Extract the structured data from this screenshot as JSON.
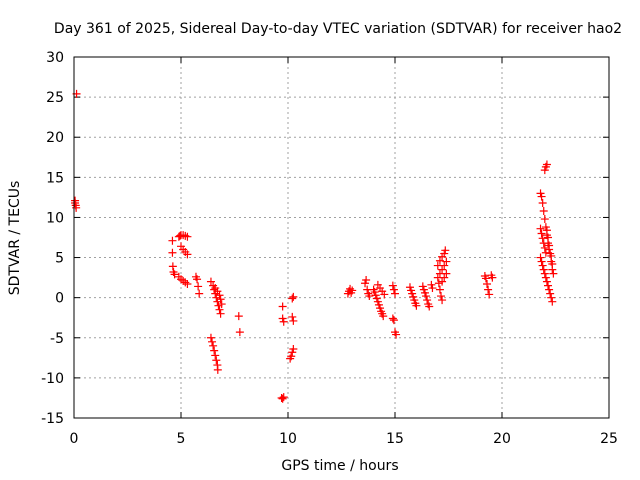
{
  "chart_data": {
    "type": "scatter",
    "title": "Day 361 of 2025, Sidereal Day-to-day VTEC variation (SDTVAR) for receiver hao2",
    "xlabel": "GPS time / hours",
    "ylabel": "SDTVAR / TECUs",
    "xlim": [
      0,
      25
    ],
    "ylim": [
      -15,
      30
    ],
    "xticks": [
      "0",
      "5",
      "10",
      "15",
      "20",
      "25"
    ],
    "yticks": [
      "-15",
      "-10",
      "-5",
      "0",
      "5",
      "10",
      "15",
      "20",
      "25",
      "30"
    ],
    "grid": true,
    "marker": "+",
    "color": "#ff0000",
    "series": [
      {
        "name": "SDTVAR",
        "points": [
          [
            0.05,
            12.1
          ],
          [
            0.05,
            11.8
          ],
          [
            0.08,
            11.5
          ],
          [
            0.1,
            11.2
          ],
          [
            0.12,
            25.4
          ],
          [
            4.6,
            7.1
          ],
          [
            4.6,
            5.6
          ],
          [
            4.62,
            3.9
          ],
          [
            4.65,
            3.2
          ],
          [
            4.7,
            2.9
          ],
          [
            4.9,
            7.6
          ],
          [
            4.95,
            7.7
          ],
          [
            5.0,
            7.8
          ],
          [
            5.1,
            7.8
          ],
          [
            5.2,
            7.7
          ],
          [
            5.3,
            7.6
          ],
          [
            5.0,
            6.4
          ],
          [
            5.1,
            6.0
          ],
          [
            5.2,
            5.7
          ],
          [
            5.3,
            5.4
          ],
          [
            4.9,
            2.6
          ],
          [
            5.0,
            2.3
          ],
          [
            5.1,
            2.1
          ],
          [
            5.2,
            1.9
          ],
          [
            5.3,
            1.7
          ],
          [
            5.7,
            2.6
          ],
          [
            5.75,
            2.3
          ],
          [
            5.8,
            1.4
          ],
          [
            5.85,
            0.5
          ],
          [
            6.4,
            2.0
          ],
          [
            6.5,
            1.5
          ],
          [
            6.55,
            1.0
          ],
          [
            6.6,
            0.5
          ],
          [
            6.65,
            0.0
          ],
          [
            6.7,
            -0.5
          ],
          [
            6.75,
            -1.0
          ],
          [
            6.8,
            -1.5
          ],
          [
            6.85,
            -2.0
          ],
          [
            6.6,
            1.2
          ],
          [
            6.7,
            0.8
          ],
          [
            6.8,
            0.3
          ],
          [
            6.85,
            -0.2
          ],
          [
            6.9,
            -0.8
          ],
          [
            6.4,
            -5.0
          ],
          [
            6.45,
            -5.5
          ],
          [
            6.5,
            -6.0
          ],
          [
            6.55,
            -6.6
          ],
          [
            6.6,
            -7.2
          ],
          [
            6.65,
            -7.8
          ],
          [
            6.7,
            -8.4
          ],
          [
            6.72,
            -9.0
          ],
          [
            7.7,
            -2.3
          ],
          [
            7.75,
            -4.3
          ],
          [
            9.7,
            -12.5
          ],
          [
            9.75,
            -12.6
          ],
          [
            9.8,
            -12.4
          ],
          [
            9.75,
            -1.1
          ],
          [
            9.75,
            -2.6
          ],
          [
            9.8,
            -3.0
          ],
          [
            10.2,
            -0.1
          ],
          [
            10.25,
            0.1
          ],
          [
            10.2,
            -2.4
          ],
          [
            10.25,
            -2.9
          ],
          [
            10.1,
            -7.6
          ],
          [
            10.15,
            -7.3
          ],
          [
            10.2,
            -6.8
          ],
          [
            10.25,
            -6.4
          ],
          [
            12.8,
            0.5
          ],
          [
            12.85,
            0.8
          ],
          [
            12.9,
            1.1
          ],
          [
            12.95,
            0.6
          ],
          [
            13.0,
            0.9
          ],
          [
            13.6,
            1.8
          ],
          [
            13.65,
            2.2
          ],
          [
            13.7,
            1.0
          ],
          [
            13.75,
            0.5
          ],
          [
            13.8,
            0.2
          ],
          [
            14.0,
            1.0
          ],
          [
            14.05,
            0.7
          ],
          [
            14.1,
            0.3
          ],
          [
            14.15,
            -0.1
          ],
          [
            14.2,
            -0.5
          ],
          [
            14.25,
            -0.9
          ],
          [
            14.3,
            -1.3
          ],
          [
            14.35,
            -1.7
          ],
          [
            14.4,
            -2.0
          ],
          [
            14.45,
            -2.3
          ],
          [
            14.2,
            1.6
          ],
          [
            14.3,
            1.2
          ],
          [
            14.4,
            0.8
          ],
          [
            14.5,
            0.4
          ],
          [
            14.9,
            -2.6
          ],
          [
            14.95,
            -2.8
          ],
          [
            15.0,
            -4.3
          ],
          [
            15.05,
            -4.6
          ],
          [
            14.9,
            1.5
          ],
          [
            14.95,
            1.0
          ],
          [
            15.0,
            0.5
          ],
          [
            15.7,
            1.3
          ],
          [
            15.75,
            0.9
          ],
          [
            15.8,
            0.5
          ],
          [
            15.85,
            0.1
          ],
          [
            15.9,
            -0.3
          ],
          [
            15.95,
            -0.7
          ],
          [
            16.0,
            -1.0
          ],
          [
            16.3,
            1.4
          ],
          [
            16.35,
            1.0
          ],
          [
            16.4,
            0.6
          ],
          [
            16.45,
            0.2
          ],
          [
            16.5,
            -0.3
          ],
          [
            16.55,
            -0.8
          ],
          [
            16.6,
            -1.1
          ],
          [
            16.7,
            1.6
          ],
          [
            16.75,
            1.2
          ],
          [
            17.0,
            2.5
          ],
          [
            17.05,
            1.8
          ],
          [
            17.1,
            1.0
          ],
          [
            17.15,
            0.2
          ],
          [
            17.2,
            -0.3
          ],
          [
            17.0,
            4.0
          ],
          [
            17.1,
            4.6
          ],
          [
            17.2,
            5.1
          ],
          [
            17.3,
            5.5
          ],
          [
            17.35,
            5.9
          ],
          [
            17.1,
            3.0
          ],
          [
            17.2,
            3.5
          ],
          [
            17.3,
            4.0
          ],
          [
            17.4,
            4.5
          ],
          [
            17.2,
            2.0
          ],
          [
            17.3,
            2.5
          ],
          [
            17.4,
            3.0
          ],
          [
            19.2,
            2.7
          ],
          [
            19.25,
            2.4
          ],
          [
            19.3,
            1.7
          ],
          [
            19.35,
            1.0
          ],
          [
            19.4,
            0.4
          ],
          [
            19.5,
            2.8
          ],
          [
            19.55,
            2.5
          ],
          [
            21.8,
            13.0
          ],
          [
            21.85,
            12.6
          ],
          [
            21.9,
            11.8
          ],
          [
            21.95,
            10.8
          ],
          [
            22.0,
            9.8
          ],
          [
            22.05,
            8.8
          ],
          [
            22.1,
            7.8
          ],
          [
            22.15,
            6.8
          ],
          [
            21.8,
            8.6
          ],
          [
            21.85,
            8.0
          ],
          [
            21.9,
            7.4
          ],
          [
            21.95,
            6.8
          ],
          [
            22.0,
            6.2
          ],
          [
            22.05,
            5.6
          ],
          [
            21.8,
            5.0
          ],
          [
            21.85,
            4.5
          ],
          [
            21.9,
            4.0
          ],
          [
            21.95,
            3.5
          ],
          [
            22.0,
            3.0
          ],
          [
            22.05,
            2.5
          ],
          [
            22.1,
            2.0
          ],
          [
            22.15,
            1.5
          ],
          [
            22.2,
            1.0
          ],
          [
            22.25,
            0.5
          ],
          [
            22.3,
            0.0
          ],
          [
            22.35,
            -0.5
          ],
          [
            22.0,
            15.9
          ],
          [
            22.05,
            16.3
          ],
          [
            22.1,
            16.6
          ],
          [
            22.1,
            8.4
          ],
          [
            22.15,
            7.5
          ],
          [
            22.2,
            6.5
          ],
          [
            22.25,
            5.5
          ],
          [
            22.3,
            4.5
          ],
          [
            22.35,
            3.5
          ],
          [
            22.4,
            3.0
          ],
          [
            22.2,
            6.0
          ],
          [
            22.3,
            5.2
          ],
          [
            22.35,
            4.2
          ]
        ]
      }
    ]
  }
}
